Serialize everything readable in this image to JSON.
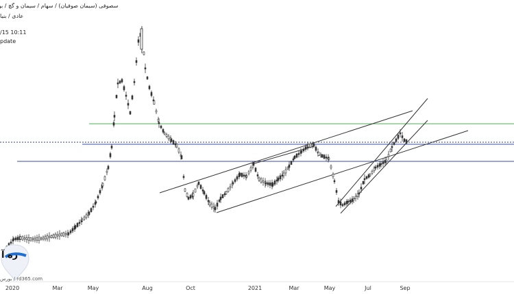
{
  "header": {
    "breadcrumb": "سصوفی (سیمان صوفیان) / سهام / سیمان و گچ / بور",
    "sub_breadcrumb": "عادی / بنیا",
    "datetime": "/15 10:11",
    "status": "pdate"
  },
  "watermark": {
    "logo_text": "ره آ",
    "site_text": "بورس / rd365.com"
  },
  "chart_data": {
    "type": "candlestick",
    "x_tick_labels": [
      "2020",
      "Mar",
      "May",
      "Aug",
      "Oct",
      "2021",
      "Mar",
      "May",
      "Jul",
      "Sep"
    ],
    "horizontal_levels": [
      {
        "color": "#4caf50",
        "style": "solid",
        "level": "upper-green"
      },
      {
        "color": "#2f3b8a",
        "style": "dotted",
        "level": "current-price"
      },
      {
        "color": "#3949ab",
        "style": "solid",
        "level": "mid-blue"
      },
      {
        "color": "#3949ab",
        "style": "solid",
        "level": "lower-blue"
      }
    ],
    "trendline_color": "#333333",
    "candle_color": "#333333",
    "grid": false
  }
}
